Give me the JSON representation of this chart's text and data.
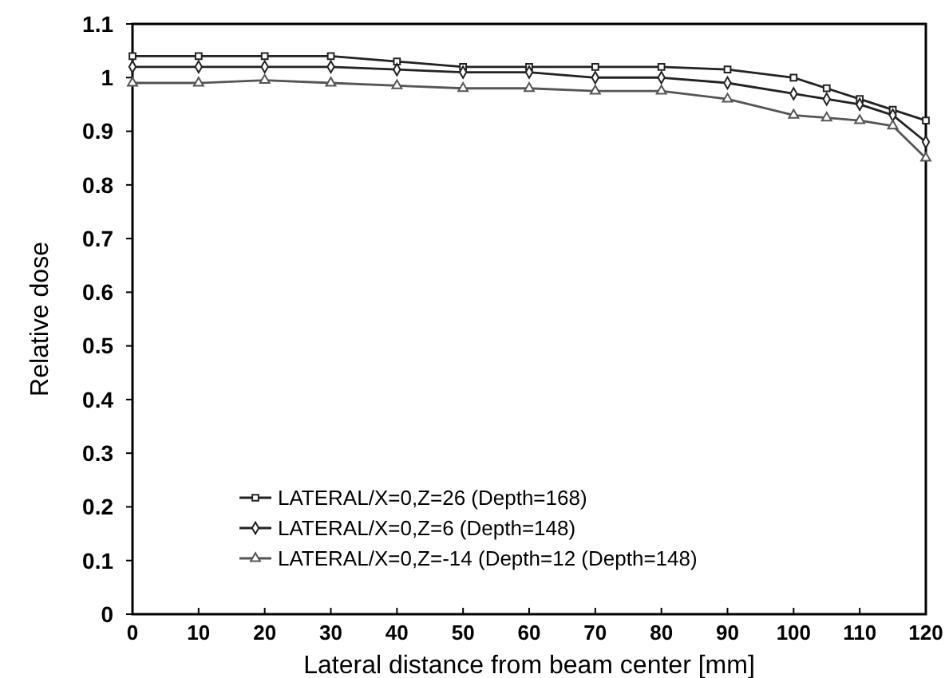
{
  "chart_data": {
    "type": "line",
    "xlabel": "Lateral distance from beam center [mm]",
    "ylabel": "Relative dose",
    "x": [
      0,
      10,
      20,
      30,
      40,
      50,
      60,
      70,
      80,
      90,
      100,
      105,
      110,
      115,
      120
    ],
    "series": [
      {
        "name": "LATERAL/X=0,Z=26 (Depth=168)",
        "color": "#222222",
        "marker": "square",
        "values": [
          1.04,
          1.04,
          1.04,
          1.04,
          1.03,
          1.02,
          1.02,
          1.02,
          1.02,
          1.015,
          1.0,
          0.98,
          0.96,
          0.94,
          0.92
        ]
      },
      {
        "name": "LATERAL/X=0,Z=6  (Depth=148)",
        "color": "#222222",
        "marker": "diamond",
        "values": [
          1.02,
          1.02,
          1.02,
          1.02,
          1.015,
          1.01,
          1.01,
          1.0,
          1.0,
          0.99,
          0.97,
          0.96,
          0.95,
          0.93,
          0.88
        ]
      },
      {
        "name": "LATERAL/X=0,Z=-14 (Depth=12 (Depth=148)",
        "color": "#555555",
        "marker": "triangle",
        "values": [
          0.99,
          0.99,
          0.995,
          0.99,
          0.985,
          0.98,
          0.98,
          0.975,
          0.975,
          0.96,
          0.93,
          0.925,
          0.92,
          0.91,
          0.85
        ]
      }
    ],
    "xlim": [
      0,
      120
    ],
    "xticks": [
      0,
      10,
      20,
      30,
      40,
      50,
      60,
      70,
      80,
      90,
      100,
      110,
      120
    ],
    "ylim": [
      0,
      1.1
    ],
    "yticks": [
      0,
      0.1,
      0.2,
      0.3,
      0.4,
      0.5,
      0.6,
      0.7,
      0.8,
      0.9,
      1,
      1.1
    ],
    "grid": false,
    "legend": "left",
    "line_style": "solid"
  }
}
